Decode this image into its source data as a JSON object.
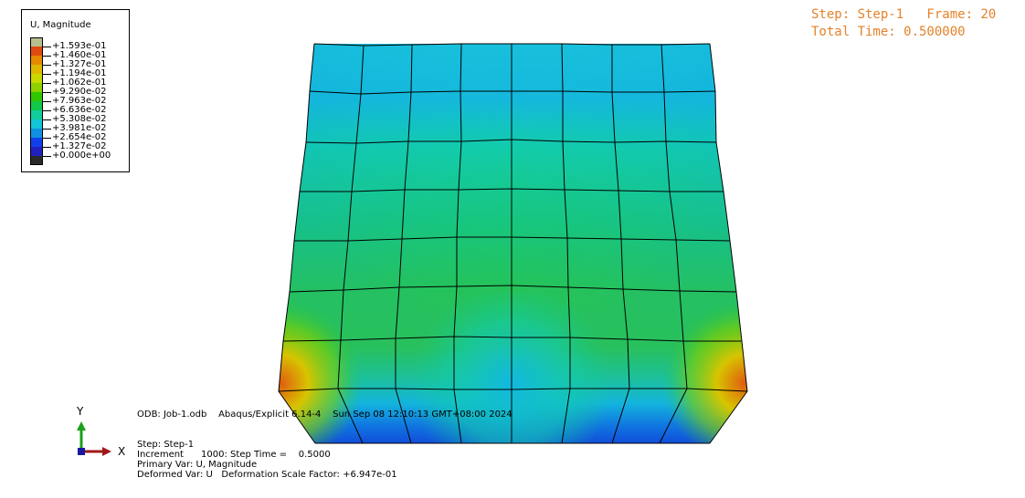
{
  "legend": {
    "title": "U, Magnitude",
    "values": [
      "+1.593e-01",
      "+1.460e-01",
      "+1.327e-01",
      "+1.194e-01",
      "+1.062e-01",
      "+9.290e-02",
      "+7.963e-02",
      "+6.636e-02",
      "+5.308e-02",
      "+3.981e-02",
      "+2.654e-02",
      "+1.327e-02",
      "+0.000e+00"
    ],
    "colors": [
      "#b5c08e",
      "#e04a10",
      "#e58a00",
      "#dcb800",
      "#c8d800",
      "#8ed000",
      "#30c800",
      "#12c848",
      "#12cc9c",
      "#12c4d8",
      "#1090e0",
      "#1040e8",
      "#2020c0",
      "#2a2a2a"
    ]
  },
  "hud": {
    "step_line": "Step: Step-1   Frame: 20",
    "time_line": "Total Time: 0.500000"
  },
  "info": {
    "odb_line": "ODB: Job-1.odb    Abaqus/Explicit 6.14-4    Sun Sep 08 12:10:13 GMT+08:00 2024",
    "step": "Step: Step-1",
    "increment": "Increment      1000: Step Time =    0.5000",
    "primary_var": "Primary Var: U, Magnitude",
    "deformed_var": "Deformed Var: U   Deformation Scale Factor: +6.947e-01"
  },
  "triad": {
    "y_label": "Y",
    "x_label": "X"
  },
  "colors": {
    "hud_text": "#e5822a",
    "mesh_line": "#000000",
    "y_axis": "#1aa01a",
    "x_axis": "#a01818",
    "z_axis": "#1818a0"
  }
}
